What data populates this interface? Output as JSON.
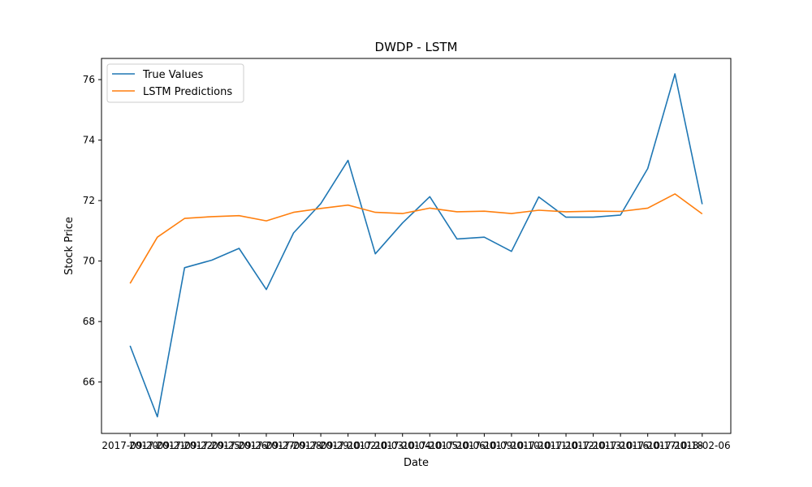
{
  "chart_data": {
    "type": "line",
    "title": "DWDP - LSTM",
    "xlabel": "Date",
    "ylabel": "Stock Price",
    "x": [
      "2017-09-20",
      "2017-09-21",
      "2017-09-22",
      "2017-09-25",
      "2017-09-26",
      "2017-09-27",
      "2017-09-28",
      "2017-09-29",
      "2017-10-02",
      "2017-10-03",
      "2017-10-04",
      "2017-10-05",
      "2017-10-06",
      "2017-10-09",
      "2017-10-10",
      "2017-10-11",
      "2017-10-12",
      "2017-10-13",
      "2017-10-16",
      "2017-10-17",
      "2017-10-18",
      "2018-02-06"
    ],
    "xtick_labels": [
      "2017-09-20",
      "2017-09-21",
      "2017-09-22",
      "2017-09-25",
      "2017-09-26",
      "2017-09-27",
      "2017-09-28",
      "2017-09-29",
      "2017-10-02",
      "2017-10-03",
      "2017-10-04",
      "2017-10-05",
      "2017-10-06",
      "2017-10-09",
      "2017-10-10",
      "2017-10-11",
      "2017-10-12",
      "2017-10-13",
      "2017-10-16",
      "2017-10-17",
      "2017-10-18",
      "2018-02-06"
    ],
    "yticks": [
      66,
      68,
      70,
      72,
      74,
      76
    ],
    "ylim": [
      64.3,
      76.7
    ],
    "grid": false,
    "legend_position": "top-left",
    "series": [
      {
        "name": "True Values",
        "color": "#1f77b4",
        "values": [
          67.2,
          64.85,
          69.78,
          70.03,
          70.42,
          69.06,
          70.93,
          71.9,
          73.33,
          70.24,
          71.26,
          72.13,
          70.73,
          70.79,
          70.32,
          72.12,
          71.45,
          71.45,
          71.52,
          73.06,
          76.19,
          71.88
        ]
      },
      {
        "name": "LSTM Predictions",
        "color": "#ff7f0e",
        "values": [
          69.26,
          70.79,
          71.41,
          71.47,
          71.5,
          71.33,
          71.61,
          71.74,
          71.85,
          71.61,
          71.57,
          71.75,
          71.63,
          71.65,
          71.57,
          71.68,
          71.63,
          71.65,
          71.64,
          71.75,
          72.22,
          71.56
        ]
      }
    ]
  }
}
